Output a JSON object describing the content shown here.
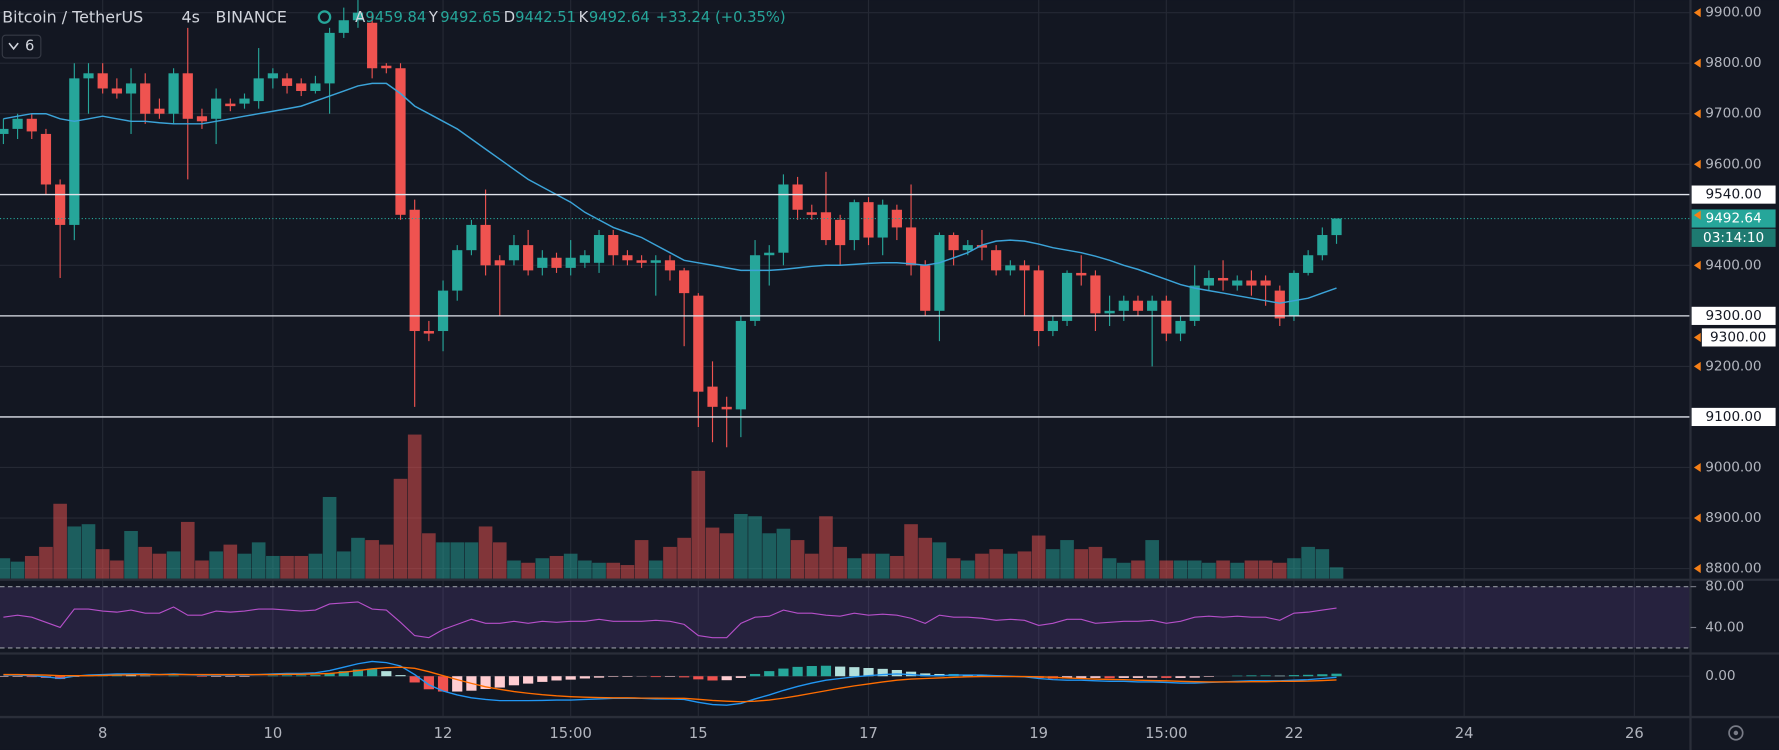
{
  "chart_data": {
    "type": "candlestick",
    "symbol": "Bitcoin / TetherUS",
    "interval": "4s",
    "exchange": "BINANCE",
    "ohlc_keys": [
      "A",
      "Y",
      "D",
      "K"
    ],
    "change": "+33.24 (+0.35%)",
    "indicator_count": 6,
    "countdown": "03:14:10",
    "up_color": "#26a69a",
    "down_color": "#ef5350",
    "ma_color": "#3ba3d8",
    "rsi_color": "#b54fc9",
    "macd_color": "#2196f3",
    "signal_color": "#ff6d00",
    "hist_colors": [
      "#26a69a",
      "#b2dfdb",
      "#ffcdd2",
      "#ef5350"
    ],
    "grid": true,
    "xlim": [
      -0.24,
      118.96
    ],
    "xticks": [
      {
        "value": 7,
        "label": "8"
      },
      {
        "value": 19,
        "label": "10"
      },
      {
        "value": 31,
        "label": "12"
      },
      {
        "value": 40,
        "label": "15:00"
      },
      {
        "value": 49,
        "label": "15"
      },
      {
        "value": 61,
        "label": "17"
      },
      {
        "value": 73,
        "label": "19"
      },
      {
        "value": 82,
        "label": "15:00"
      },
      {
        "value": 91,
        "label": "22"
      },
      {
        "value": 103,
        "label": "24"
      },
      {
        "value": 115,
        "label": "26"
      }
    ],
    "ylim": [
      8780,
      9925
    ],
    "yticks": [
      {
        "value": 9900,
        "label": "9900.00"
      },
      {
        "value": 9800,
        "label": "9800.00"
      },
      {
        "value": 9700,
        "label": "9700.00"
      },
      {
        "value": 9600,
        "label": "9600.00"
      },
      {
        "value": 9400,
        "label": "9400.00"
      },
      {
        "value": 9200,
        "label": "9200.00"
      },
      {
        "value": 9000,
        "label": "9000.00"
      },
      {
        "value": 8900,
        "label": "8900.00"
      },
      {
        "value": 8800,
        "label": "8800.00"
      }
    ],
    "levels": [
      {
        "value": 9540,
        "label": "9540.00"
      },
      {
        "value": 9300,
        "label": "9300.00"
      },
      {
        "value": 9100,
        "label": "9100.00"
      }
    ],
    "alert": {
      "value": 9300,
      "label": "9300.00"
    },
    "open": [
      9660,
      9670,
      9690,
      9660,
      9560,
      9480,
      9770,
      9780,
      9750,
      9740,
      9760,
      9710,
      9700,
      9780,
      9695,
      9690,
      9720,
      9720,
      9725,
      9770,
      9770,
      9760,
      9745,
      9760,
      9860,
      9885,
      9880,
      9795,
      9790,
      9510,
      9270,
      9270,
      9350,
      9430,
      9480,
      9410,
      9410,
      9440,
      9395,
      9415,
      9395,
      9405,
      9405,
      9460,
      9420,
      9410,
      9405,
      9410,
      9390,
      9340,
      9160,
      9120,
      9115,
      9290,
      9420,
      9425,
      9560,
      9505,
      9505,
      9490,
      9450,
      9525,
      9455,
      9510,
      9475,
      9400,
      9310,
      9460,
      9430,
      9440,
      9430,
      9390,
      9400,
      9390,
      9270,
      9290,
      9385,
      9380,
      9305,
      9310,
      9330,
      9310,
      9330,
      9265,
      9290,
      9360,
      9375,
      9360,
      9370,
      9370,
      9350,
      9300,
      9385,
      9420,
      9459.84
    ],
    "high": [
      9690,
      9700,
      9700,
      9670,
      9570,
      9800,
      9800,
      9800,
      9770,
      9790,
      9780,
      9730,
      9790,
      9870,
      9710,
      9750,
      9730,
      9740,
      9830,
      9790,
      9780,
      9770,
      9775,
      9870,
      9910,
      9925,
      9900,
      9800,
      9800,
      9530,
      9290,
      9370,
      9440,
      9490,
      9550,
      9420,
      9460,
      9470,
      9430,
      9425,
      9450,
      9430,
      9470,
      9470,
      9430,
      9420,
      9420,
      9420,
      9395,
      9345,
      9210,
      9140,
      9300,
      9450,
      9440,
      9580,
      9575,
      9520,
      9585,
      9500,
      9530,
      9535,
      9530,
      9520,
      9560,
      9410,
      9465,
      9465,
      9450,
      9470,
      9440,
      9410,
      9410,
      9400,
      9300,
      9390,
      9420,
      9390,
      9340,
      9340,
      9340,
      9340,
      9340,
      9300,
      9400,
      9390,
      9410,
      9380,
      9390,
      9380,
      9360,
      9390,
      9430,
      9475,
      9492.65
    ],
    "low": [
      9640,
      9650,
      9650,
      9540,
      9375,
      9450,
      9700,
      9740,
      9730,
      9660,
      9680,
      9690,
      9680,
      9570,
      9670,
      9640,
      9705,
      9710,
      9710,
      9750,
      9740,
      9735,
      9740,
      9700,
      9850,
      9870,
      9770,
      9780,
      9490,
      9120,
      9250,
      9230,
      9330,
      9420,
      9380,
      9300,
      9400,
      9380,
      9380,
      9385,
      9380,
      9395,
      9385,
      9400,
      9400,
      9395,
      9340,
      9370,
      9240,
      9080,
      9050,
      9040,
      9060,
      9280,
      9360,
      9400,
      9490,
      9490,
      9440,
      9400,
      9430,
      9440,
      9420,
      9450,
      9380,
      9300,
      9250,
      9400,
      9420,
      9410,
      9380,
      9380,
      9300,
      9240,
      9260,
      9280,
      9360,
      9270,
      9280,
      9290,
      9300,
      9200,
      9250,
      9250,
      9280,
      9350,
      9350,
      9350,
      9340,
      9320,
      9280,
      9290,
      9380,
      9410,
      9442.51
    ],
    "close": [
      9670,
      9690,
      9665,
      9560,
      9480,
      9770,
      9780,
      9750,
      9740,
      9760,
      9700,
      9700,
      9780,
      9690,
      9685,
      9730,
      9715,
      9730,
      9770,
      9780,
      9755,
      9745,
      9760,
      9860,
      9885,
      9900,
      9790,
      9790,
      9500,
      9270,
      9265,
      9350,
      9430,
      9480,
      9400,
      9400,
      9440,
      9390,
      9415,
      9395,
      9415,
      9420,
      9460,
      9420,
      9410,
      9405,
      9410,
      9390,
      9345,
      9150,
      9120,
      9115,
      9290,
      9420,
      9425,
      9560,
      9510,
      9500,
      9450,
      9440,
      9525,
      9455,
      9520,
      9475,
      9400,
      9310,
      9460,
      9430,
      9440,
      9435,
      9390,
      9400,
      9390,
      9270,
      9290,
      9385,
      9380,
      9305,
      9310,
      9330,
      9310,
      9330,
      9265,
      9290,
      9360,
      9375,
      9370,
      9370,
      9360,
      9360,
      9295,
      9385,
      9420,
      9460,
      9492.64
    ],
    "volume": [
      18,
      15,
      20,
      28,
      66,
      46,
      48,
      26,
      16,
      42,
      28,
      22,
      24,
      50,
      16,
      24,
      30,
      22,
      32,
      20,
      20,
      20,
      22,
      72,
      24,
      36,
      34,
      30,
      88,
      127,
      40,
      32,
      32,
      32,
      46,
      32,
      16,
      14,
      18,
      20,
      22,
      16,
      14,
      14,
      12,
      34,
      16,
      28,
      36,
      95,
      45,
      40,
      57,
      55,
      40,
      44,
      34,
      22,
      55,
      28,
      18,
      22,
      22,
      20,
      48,
      36,
      32,
      18,
      16,
      22,
      26,
      22,
      24,
      38,
      26,
      34,
      26,
      28,
      18,
      14,
      16,
      34,
      16,
      16,
      16,
      14,
      16,
      14,
      16,
      16,
      14,
      18,
      28,
      26,
      10
    ],
    "ma": [
      9690,
      9695,
      9700,
      9700,
      9690,
      9685,
      9690,
      9695,
      9690,
      9685,
      9685,
      9682,
      9680,
      9680,
      9680,
      9685,
      9690,
      9695,
      9700,
      9705,
      9710,
      9715,
      9725,
      9735,
      9745,
      9755,
      9760,
      9760,
      9740,
      9715,
      9700,
      9685,
      9670,
      9650,
      9630,
      9610,
      9590,
      9570,
      9555,
      9540,
      9525,
      9505,
      9490,
      9475,
      9465,
      9455,
      9440,
      9425,
      9410,
      9405,
      9400,
      9395,
      9390,
      9390,
      9390,
      9392,
      9395,
      9398,
      9400,
      9400,
      9402,
      9404,
      9405,
      9405,
      9403,
      9400,
      9405,
      9415,
      9425,
      9440,
      9448,
      9450,
      9448,
      9442,
      9435,
      9430,
      9425,
      9418,
      9410,
      9400,
      9392,
      9382,
      9372,
      9362,
      9355,
      9350,
      9345,
      9340,
      9335,
      9330,
      9325,
      9330,
      9335,
      9345,
      9355
    ],
    "rsi_lim": [
      15.6,
      85.6
    ],
    "rsi_ticks": [
      {
        "value": 80,
        "label": "80.00"
      },
      {
        "value": 40,
        "label": "40.00"
      }
    ],
    "rsi_band": [
      20,
      80
    ],
    "rsi": [
      50,
      52,
      50,
      45,
      40,
      58,
      58,
      56,
      55,
      57,
      54,
      54,
      60,
      52,
      52,
      56,
      55,
      56,
      58,
      58,
      57,
      56,
      57,
      63,
      64,
      65,
      58,
      57,
      45,
      32,
      30,
      38,
      43,
      48,
      44,
      44,
      46,
      44,
      46,
      45,
      46,
      46,
      48,
      46,
      46,
      46,
      47,
      46,
      43,
      32,
      30,
      30,
      44,
      50,
      51,
      57,
      54,
      54,
      52,
      51,
      54,
      52,
      53,
      52,
      49,
      44,
      52,
      50,
      50,
      49,
      47,
      48,
      47,
      42,
      44,
      48,
      48,
      44,
      45,
      46,
      46,
      47,
      44,
      46,
      50,
      51,
      50,
      51,
      50,
      50,
      47,
      54,
      55,
      57,
      59
    ],
    "macd_lim": [
      -144,
      72
    ],
    "macd_ticks": [
      {
        "value": 0,
        "label": "0.00"
      }
    ],
    "macd": [
      4,
      4,
      2,
      -2,
      -8,
      0,
      4,
      6,
      8,
      8,
      8,
      6,
      8,
      6,
      4,
      4,
      4,
      4,
      6,
      8,
      10,
      10,
      12,
      20,
      32,
      44,
      52,
      48,
      36,
      6,
      -30,
      -52,
      -66,
      -76,
      -82,
      -86,
      -86,
      -86,
      -85,
      -84,
      -84,
      -82,
      -80,
      -78,
      -78,
      -78,
      -80,
      -80,
      -82,
      -92,
      -100,
      -102,
      -96,
      -80,
      -66,
      -50,
      -36,
      -24,
      -14,
      -8,
      -2,
      2,
      6,
      8,
      6,
      2,
      2,
      4,
      4,
      4,
      2,
      0,
      -2,
      -8,
      -12,
      -14,
      -14,
      -16,
      -18,
      -18,
      -20,
      -20,
      -22,
      -24,
      -24,
      -22,
      -20,
      -18,
      -16,
      -16,
      -16,
      -14,
      -12,
      -8,
      -4
    ],
    "signal": [
      6,
      6,
      5,
      4,
      2,
      2,
      2,
      3,
      4,
      5,
      6,
      6,
      6,
      6,
      6,
      6,
      6,
      6,
      6,
      6,
      7,
      7,
      8,
      10,
      14,
      20,
      26,
      30,
      32,
      28,
      16,
      2,
      -12,
      -25,
      -37,
      -46,
      -54,
      -60,
      -65,
      -69,
      -72,
      -74,
      -75,
      -76,
      -76,
      -77,
      -77,
      -78,
      -78,
      -81,
      -85,
      -88,
      -90,
      -88,
      -84,
      -77,
      -69,
      -60,
      -51,
      -42,
      -34,
      -27,
      -20,
      -14,
      -10,
      -8,
      -6,
      -4,
      -2,
      -1,
      -1,
      -1,
      -1,
      -2,
      -4,
      -6,
      -8,
      -10,
      -11,
      -12,
      -14,
      -15,
      -16,
      -18,
      -19,
      -20,
      -20,
      -20,
      -19,
      -19,
      -18,
      -18,
      -17,
      -15,
      -13
    ],
    "hist": [
      -2,
      -2,
      -3,
      -6,
      -10,
      -2,
      2,
      3,
      4,
      3,
      2,
      0,
      2,
      0,
      -2,
      -2,
      -2,
      -2,
      0,
      2,
      3,
      3,
      4,
      10,
      18,
      24,
      26,
      18,
      4,
      -22,
      -46,
      -54,
      -54,
      -51,
      -45,
      -40,
      -32,
      -26,
      -20,
      -15,
      -12,
      -8,
      -5,
      -2,
      -2,
      -1,
      -3,
      -2,
      -4,
      -11,
      -15,
      -14,
      -6,
      8,
      18,
      27,
      33,
      36,
      37,
      34,
      32,
      29,
      26,
      22,
      16,
      10,
      8,
      8,
      6,
      5,
      3,
      1,
      -1,
      -6,
      -8,
      -8,
      -6,
      -6,
      -7,
      -6,
      -6,
      -5,
      -6,
      -6,
      -5,
      -2,
      0,
      2,
      3,
      3,
      2,
      4,
      5,
      7,
      9
    ]
  }
}
